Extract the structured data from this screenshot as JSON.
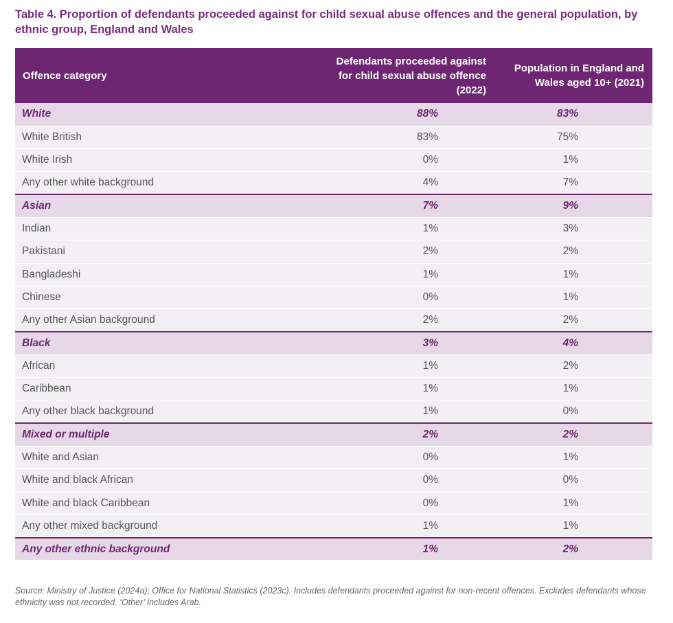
{
  "title": "Table 4. Proportion of defendants proceeded against for child sexual abuse offences and the general population, by ethnic group, England and Wales",
  "table": {
    "headers": {
      "category": "Offence category",
      "defendants": "Defendants proceeded against for child sexual abuse offence (2022)",
      "population": "Population in England and Wales aged 10+ (2021)"
    },
    "rows": [
      {
        "label": "White",
        "defendants": "88%",
        "population": "83%",
        "group": true
      },
      {
        "label": "White British",
        "defendants": "83%",
        "population": "75%",
        "group": false
      },
      {
        "label": "White Irish",
        "defendants": "0%",
        "population": "1%",
        "group": false
      },
      {
        "label": "Any other white background",
        "defendants": "4%",
        "population": "7%",
        "group": false
      },
      {
        "label": "Asian",
        "defendants": "7%",
        "population": "9%",
        "group": true
      },
      {
        "label": "Indian",
        "defendants": "1%",
        "population": "3%",
        "group": false
      },
      {
        "label": "Pakistani",
        "defendants": "2%",
        "population": "2%",
        "group": false
      },
      {
        "label": "Bangladeshi",
        "defendants": "1%",
        "population": "1%",
        "group": false
      },
      {
        "label": "Chinese",
        "defendants": "0%",
        "population": "1%",
        "group": false
      },
      {
        "label": "Any other Asian background",
        "defendants": "2%",
        "population": "2%",
        "group": false
      },
      {
        "label": "Black",
        "defendants": "3%",
        "population": "4%",
        "group": true
      },
      {
        "label": "African",
        "defendants": "1%",
        "population": "2%",
        "group": false
      },
      {
        "label": "Caribbean",
        "defendants": "1%",
        "population": "1%",
        "group": false
      },
      {
        "label": "Any other black background",
        "defendants": "1%",
        "population": "0%",
        "group": false
      },
      {
        "label": "Mixed or multiple",
        "defendants": "2%",
        "population": "2%",
        "group": true
      },
      {
        "label": "White and Asian",
        "defendants": "0%",
        "population": "1%",
        "group": false
      },
      {
        "label": "White and black African",
        "defendants": "0%",
        "population": "0%",
        "group": false
      },
      {
        "label": "White and black Caribbean",
        "defendants": "0%",
        "population": "1%",
        "group": false
      },
      {
        "label": "Any other mixed background",
        "defendants": "1%",
        "population": "1%",
        "group": false
      },
      {
        "label": "Any other ethnic background",
        "defendants": "1%",
        "population": "2%",
        "group": true
      }
    ]
  },
  "source": "Source: Ministry of Justice (2024a); Office for National Statistics (2023c). Includes defendants proceeded against for non-recent offences. Excludes defendants whose ethnicity was not recorded. ‘Other’ includes Arab.",
  "colors": {
    "header_bg": "#6e2672",
    "title": "#7b2a7f",
    "group_bg": "#e6d8e7",
    "row_bg": "#f3f0f4"
  }
}
